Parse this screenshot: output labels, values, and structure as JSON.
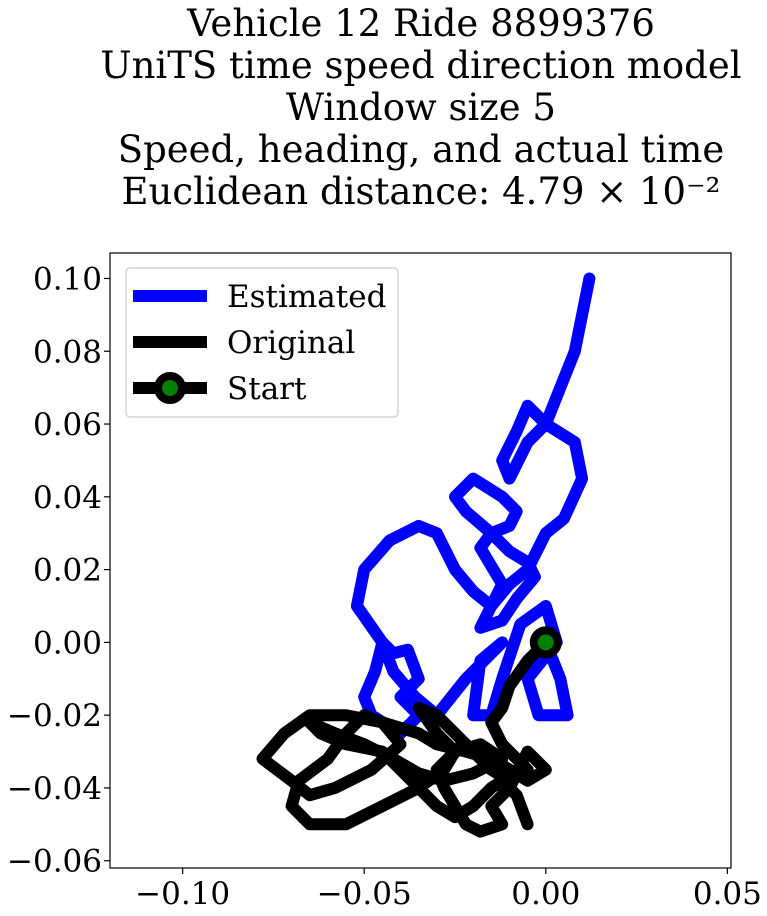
{
  "chart_data": {
    "type": "line",
    "title_lines": [
      "Vehicle 12 Ride 8899376",
      "UniTS time speed direction model",
      "Window size 5",
      "Speed, heading, and actual time",
      "Euclidean distance: 4.79 × 10⁻²"
    ],
    "xlabel": "",
    "ylabel": "",
    "xlim": [
      -0.12,
      0.051
    ],
    "ylim": [
      -0.062,
      0.107
    ],
    "x_ticks": [
      -0.1,
      -0.05,
      0.0,
      0.05
    ],
    "x_tick_labels": [
      "−0.10",
      "−0.05",
      "0.00",
      "0.05"
    ],
    "y_ticks": [
      0.1,
      0.08,
      0.06,
      0.04,
      0.02,
      0.0,
      -0.02,
      -0.04,
      -0.06
    ],
    "y_tick_labels": [
      "0.10",
      "0.08",
      "0.06",
      "0.04",
      "0.02",
      "0.00",
      "−0.02",
      "−0.04",
      "−0.06"
    ],
    "legend_position": "top-left",
    "grid": false,
    "colors": {
      "estimated": "#0000ff",
      "original": "#000000",
      "start_fill": "#008000"
    },
    "series": [
      {
        "name": "Estimated",
        "x": [
          0.0,
          0.004,
          0.006,
          -0.002,
          -0.005,
          0.003,
          0.0,
          -0.007,
          -0.012,
          -0.015,
          -0.02,
          -0.018,
          -0.012,
          -0.022,
          -0.03,
          -0.036,
          -0.042,
          -0.045,
          -0.042,
          -0.038,
          -0.035,
          -0.04,
          -0.035,
          -0.04,
          -0.048,
          -0.05,
          -0.047,
          -0.045,
          -0.052,
          -0.05,
          -0.043,
          -0.035,
          -0.03,
          -0.025,
          -0.02,
          -0.015,
          -0.012,
          -0.018,
          -0.015,
          -0.01,
          -0.008,
          -0.012,
          -0.02,
          -0.025,
          -0.022,
          -0.015,
          -0.01,
          -0.005,
          -0.003,
          -0.008,
          -0.012,
          -0.018,
          -0.015,
          -0.01,
          -0.005,
          0.0,
          0.005,
          0.01,
          0.008,
          0.0,
          -0.005,
          -0.008,
          -0.012,
          -0.01,
          -0.005,
          0.0,
          0.004,
          0.008,
          0.01,
          0.012
        ],
        "y": [
          0.0,
          -0.01,
          -0.02,
          -0.02,
          -0.01,
          0.0,
          0.01,
          0.005,
          -0.01,
          -0.02,
          -0.02,
          -0.005,
          0.0,
          -0.01,
          -0.02,
          -0.015,
          -0.008,
          0.0,
          -0.003,
          -0.002,
          -0.01,
          -0.015,
          -0.02,
          -0.025,
          -0.02,
          -0.015,
          -0.008,
          0.0,
          0.01,
          0.02,
          0.028,
          0.032,
          0.03,
          0.02,
          0.014,
          0.01,
          0.016,
          0.026,
          0.03,
          0.032,
          0.036,
          0.04,
          0.045,
          0.04,
          0.036,
          0.03,
          0.025,
          0.022,
          0.018,
          0.012,
          0.006,
          0.004,
          0.01,
          0.016,
          0.02,
          0.03,
          0.034,
          0.045,
          0.055,
          0.06,
          0.065,
          0.058,
          0.05,
          0.045,
          0.055,
          0.06,
          0.07,
          0.08,
          0.09,
          0.1
        ]
      },
      {
        "name": "Original",
        "x": [
          0.0,
          -0.005,
          -0.01,
          -0.012,
          -0.015,
          -0.012,
          -0.008,
          -0.005,
          -0.01,
          -0.015,
          -0.02,
          -0.025,
          -0.03,
          -0.035,
          -0.03,
          -0.025,
          -0.028,
          -0.035,
          -0.045,
          -0.055,
          -0.065,
          -0.07,
          -0.068,
          -0.06,
          -0.055,
          -0.05,
          -0.045,
          -0.04,
          -0.048,
          -0.058,
          -0.065,
          -0.07,
          -0.078,
          -0.072,
          -0.065,
          -0.055,
          -0.045,
          -0.035,
          -0.03,
          -0.022,
          -0.015,
          -0.01,
          -0.005,
          0.0,
          -0.005,
          -0.01,
          -0.015,
          -0.012,
          -0.018,
          -0.022,
          -0.025,
          -0.028,
          -0.03,
          -0.025,
          -0.018,
          -0.012,
          -0.02,
          -0.028,
          -0.035,
          -0.042,
          -0.05,
          -0.058,
          -0.065,
          -0.062,
          -0.055,
          -0.045,
          -0.04,
          -0.035,
          -0.03,
          -0.025,
          -0.02,
          -0.015,
          -0.012,
          -0.008,
          -0.005
        ],
        "y": [
          0.0,
          -0.005,
          -0.012,
          -0.018,
          -0.022,
          -0.028,
          -0.032,
          -0.035,
          -0.038,
          -0.035,
          -0.03,
          -0.025,
          -0.02,
          -0.018,
          -0.025,
          -0.03,
          -0.035,
          -0.04,
          -0.045,
          -0.05,
          -0.05,
          -0.045,
          -0.038,
          -0.032,
          -0.025,
          -0.02,
          -0.022,
          -0.028,
          -0.035,
          -0.04,
          -0.042,
          -0.038,
          -0.032,
          -0.025,
          -0.02,
          -0.02,
          -0.022,
          -0.025,
          -0.028,
          -0.03,
          -0.032,
          -0.035,
          -0.038,
          -0.035,
          -0.03,
          -0.04,
          -0.045,
          -0.05,
          -0.052,
          -0.05,
          -0.045,
          -0.04,
          -0.035,
          -0.03,
          -0.028,
          -0.032,
          -0.036,
          -0.038,
          -0.036,
          -0.032,
          -0.028,
          -0.025,
          -0.022,
          -0.025,
          -0.028,
          -0.03,
          -0.035,
          -0.04,
          -0.045,
          -0.048,
          -0.045,
          -0.04,
          -0.038,
          -0.042,
          -0.05
        ]
      },
      {
        "name": "Start",
        "x": [
          0.0
        ],
        "y": [
          0.0
        ]
      }
    ]
  }
}
